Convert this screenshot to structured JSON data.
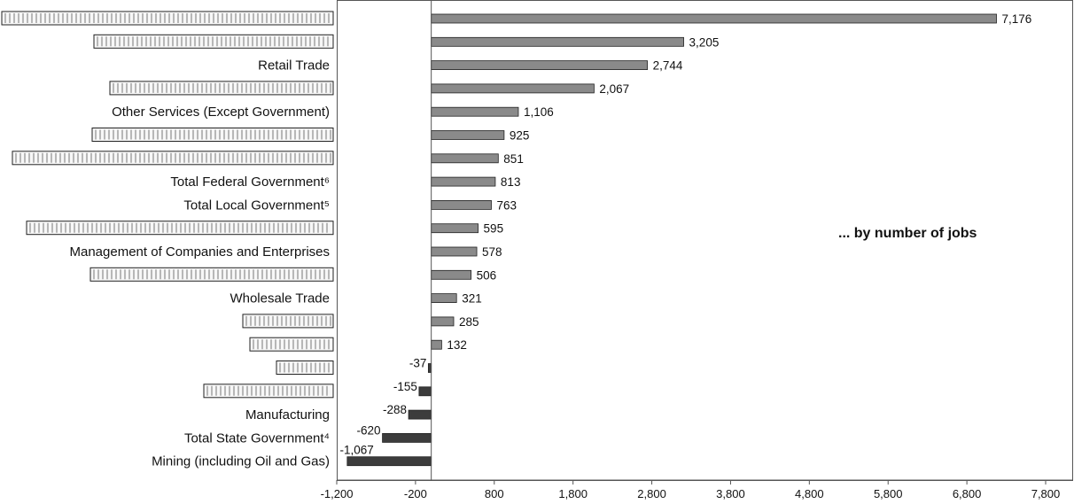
{
  "chart_data": {
    "type": "bar",
    "orientation": "horizontal",
    "annotation": "... by number of jobs",
    "categories": [
      "",
      "",
      "Retail Trade",
      "",
      "Other Services (Except Government)",
      "",
      "",
      "Total Federal Government⁶",
      "Total Local Government⁵",
      "",
      "Management of Companies and Enterprises",
      "",
      "Wholesale Trade",
      "",
      "",
      "",
      "",
      "Manufacturing",
      "Total State Government⁴",
      "Mining (including Oil and Gas)"
    ],
    "redacted": [
      true,
      true,
      false,
      true,
      false,
      true,
      true,
      false,
      false,
      true,
      false,
      true,
      false,
      true,
      true,
      true,
      true,
      false,
      false,
      false
    ],
    "values": [
      7176,
      3205,
      2744,
      2067,
      1106,
      925,
      851,
      813,
      763,
      595,
      578,
      506,
      321,
      285,
      132,
      -37,
      -155,
      -288,
      -620,
      -1067
    ],
    "value_labels": [
      "7,176",
      "3,205",
      "2,744",
      "2,067",
      "1,106",
      "925",
      "851",
      "813",
      "763",
      "595",
      "578",
      "506",
      "321",
      "285",
      "132",
      "-37",
      "-155",
      "-288",
      "-620",
      "-1,067"
    ],
    "xlim": [
      -1200,
      7800
    ],
    "xticks": [
      -1200,
      -200,
      800,
      1800,
      2800,
      3800,
      4800,
      5800,
      6800,
      7800
    ],
    "xtick_labels": [
      "-1,200",
      "-200",
      "800",
      "1,800",
      "2,800",
      "3,800",
      "4,800",
      "5,800",
      "6,800",
      "7,800"
    ],
    "grid": false,
    "colors": {
      "positive": "#8a8a8a",
      "negative": "#3c3c3c",
      "bar_stroke": "#222222",
      "axis": "#555555"
    }
  }
}
